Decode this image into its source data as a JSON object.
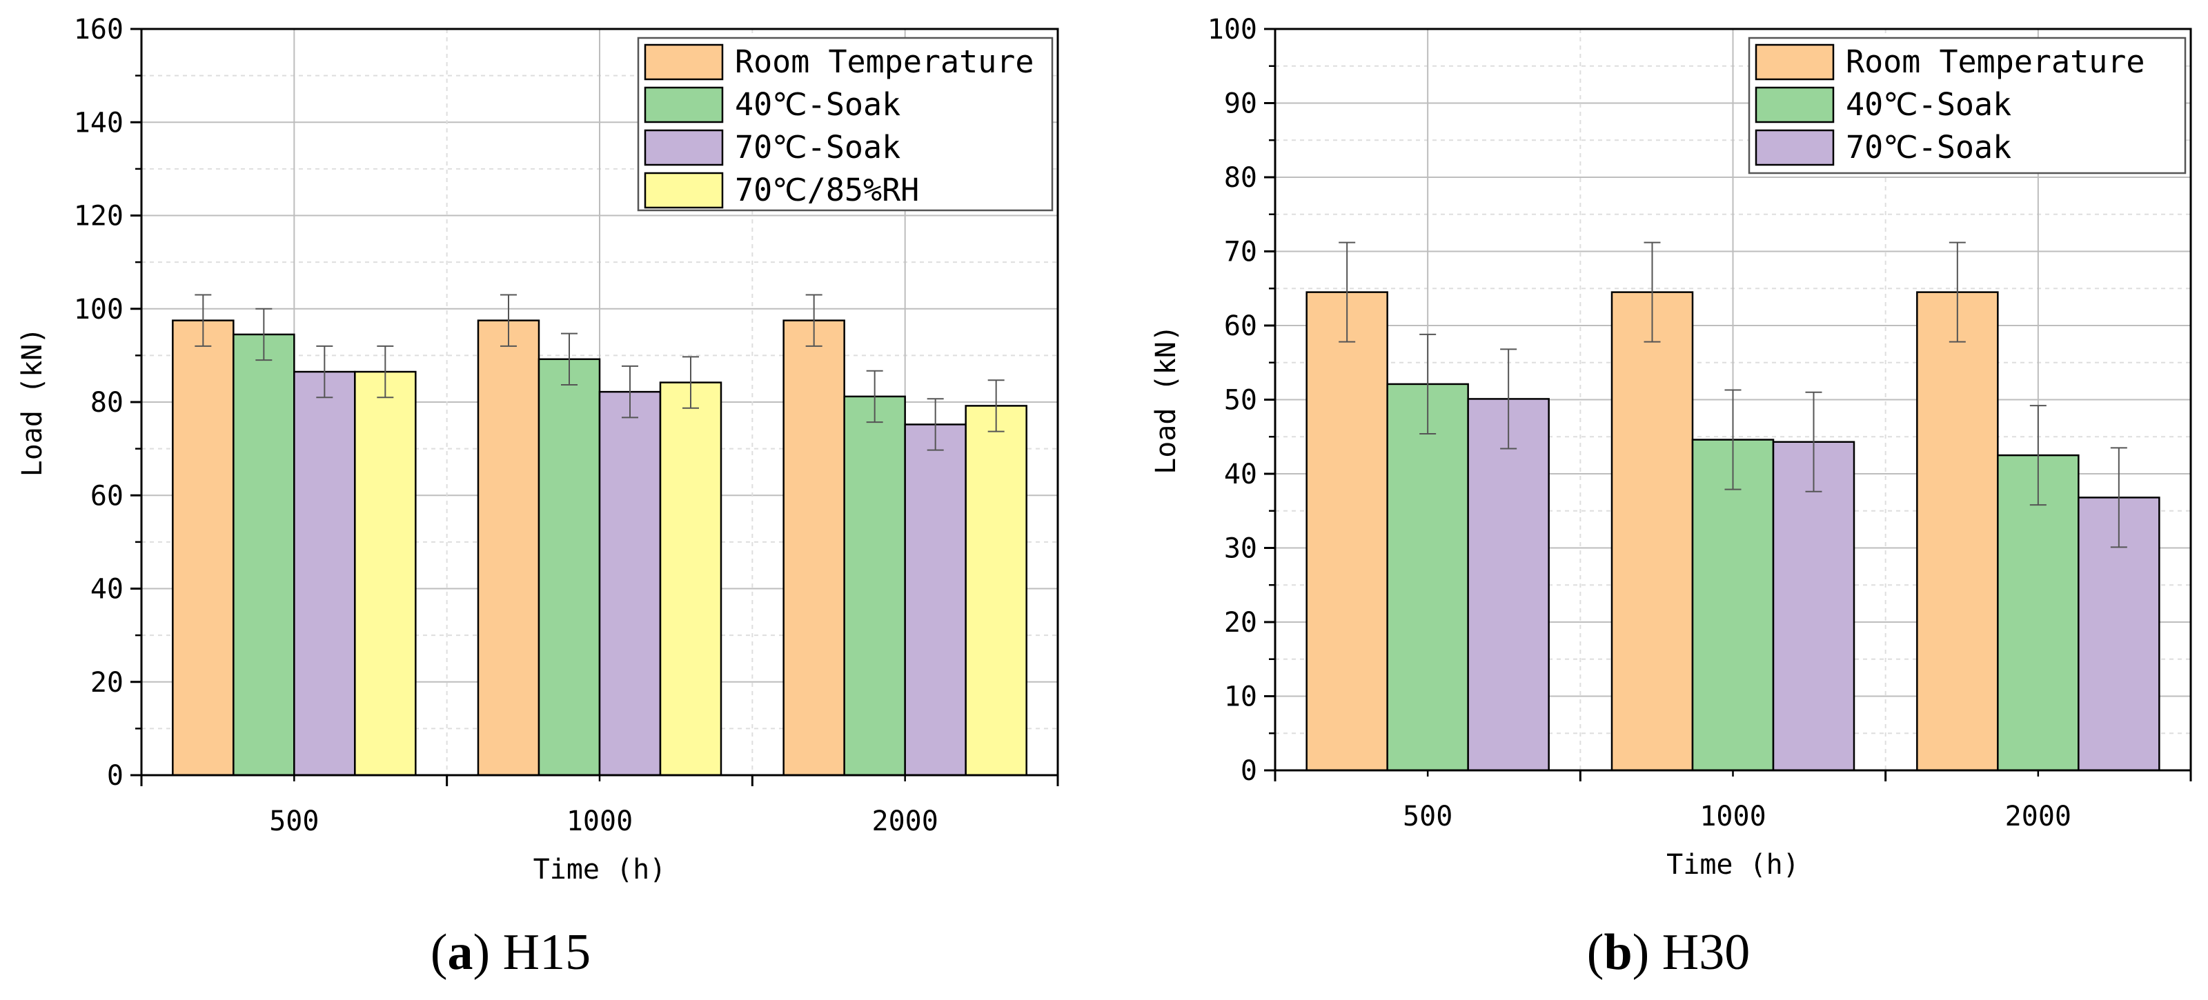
{
  "colors": {
    "room_temperature": "#fdcb92",
    "soak_40": "#98d59a",
    "soak_70": "#c4b2d8",
    "humid_70_85": "#fffb9c",
    "axis": "#000000",
    "grid_major": "#bdbdbd",
    "grid_minor": "#dedede"
  },
  "captions": [
    {
      "letter": "a",
      "open": "(",
      "close": ")",
      "text": " H15"
    },
    {
      "letter": "b",
      "open": "(",
      "close": ")",
      "text": " H30"
    }
  ],
  "chart_data": [
    {
      "type": "bar",
      "title": "",
      "xlabel": "Time (h)",
      "ylabel": "Load (kN)",
      "categories": [
        "500",
        "1000",
        "2000"
      ],
      "ylim": [
        0,
        160
      ],
      "yticks": [
        "0",
        "20",
        "40",
        "60",
        "80",
        "100",
        "120",
        "140",
        "160"
      ],
      "grid": true,
      "legend_position": "top-right",
      "series": [
        {
          "name": "Room Temperature",
          "color_key": "room_temperature",
          "values": [
            97.5,
            97.5,
            97.5
          ],
          "errors": [
            5.5,
            5.5,
            5.5
          ]
        },
        {
          "name": "40℃-Soak",
          "color_key": "soak_40",
          "values": [
            94.5,
            89.2,
            81.2
          ],
          "errors": [
            5.5,
            5.5,
            5.5
          ]
        },
        {
          "name": "70℃-Soak",
          "color_key": "soak_70",
          "values": [
            86.5,
            82.2,
            75.2
          ],
          "errors": [
            5.5,
            5.5,
            5.5
          ]
        },
        {
          "name": "70℃/85%RH",
          "color_key": "humid_70_85",
          "values": [
            86.5,
            84.2,
            79.2
          ],
          "errors": [
            5.5,
            5.5,
            5.5
          ]
        }
      ]
    },
    {
      "type": "bar",
      "title": "",
      "xlabel": "Time (h)",
      "ylabel": "Load (kN)",
      "categories": [
        "500",
        "1000",
        "2000"
      ],
      "ylim": [
        0,
        100
      ],
      "yticks": [
        "0",
        "10",
        "20",
        "30",
        "40",
        "50",
        "60",
        "70",
        "80",
        "90",
        "100"
      ],
      "grid": true,
      "legend_position": "top-right",
      "series": [
        {
          "name": "Room Temperature",
          "color_key": "room_temperature",
          "values": [
            64.5,
            64.5,
            64.5
          ],
          "errors": [
            6.7,
            6.7,
            6.7
          ]
        },
        {
          "name": "40℃-Soak",
          "color_key": "soak_40",
          "values": [
            52.1,
            44.6,
            42.5
          ],
          "errors": [
            6.7,
            6.7,
            6.7
          ]
        },
        {
          "name": "70℃-Soak",
          "color_key": "soak_70",
          "values": [
            50.1,
            44.3,
            36.8
          ],
          "errors": [
            6.7,
            6.7,
            6.7
          ]
        }
      ]
    }
  ]
}
